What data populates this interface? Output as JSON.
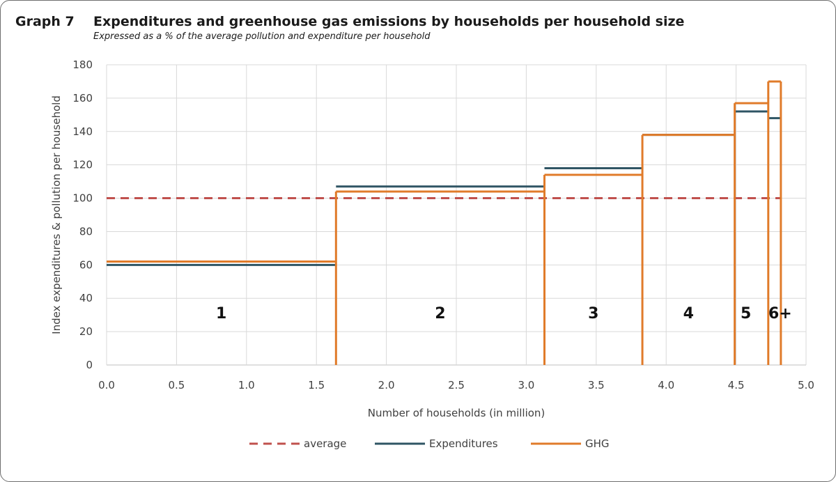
{
  "header": {
    "graph_label": "Graph 7",
    "title": "Expenditures and greenhouse gas emissions by households per household size",
    "subtitle": "Expressed as a % of the average pollution and expenditure per household"
  },
  "colors": {
    "average": "#c0504d",
    "expenditures": "#2f5564",
    "ghg": "#e07b2a",
    "grid": "#d9d9d9",
    "axis": "#bfbfbf"
  },
  "chart_data": {
    "type": "line",
    "xlabel": "Number of households (in million)",
    "ylabel": "Index expenditures & pollution per household",
    "xlim": [
      0,
      5
    ],
    "ylim": [
      0,
      180
    ],
    "x_ticks": [
      "0.0",
      "0.5",
      "1.0",
      "1.5",
      "2.0",
      "2.5",
      "3.0",
      "3.5",
      "4.0",
      "4.5",
      "5.0"
    ],
    "y_ticks": [
      "0",
      "20",
      "40",
      "60",
      "80",
      "100",
      "120",
      "140",
      "160",
      "180"
    ],
    "grid": true,
    "legend_position": "bottom",
    "segments": [
      {
        "label": "1",
        "x_start": 0.0,
        "x_end": 1.64,
        "expenditures": 60,
        "ghg": 62
      },
      {
        "label": "2",
        "x_start": 1.64,
        "x_end": 3.13,
        "expenditures": 107,
        "ghg": 104
      },
      {
        "label": "3",
        "x_start": 3.13,
        "x_end": 3.83,
        "expenditures": 118,
        "ghg": 114
      },
      {
        "label": "4",
        "x_start": 3.83,
        "x_end": 4.49,
        "expenditures": 138,
        "ghg": 138
      },
      {
        "label": "5",
        "x_start": 4.49,
        "x_end": 4.73,
        "expenditures": 152,
        "ghg": 157
      },
      {
        "label": "6+",
        "x_start": 4.73,
        "x_end": 4.82,
        "expenditures": 148,
        "ghg": 170
      }
    ],
    "series": [
      {
        "name": "average",
        "style": "dashed",
        "x": [
          0,
          4.82
        ],
        "values": [
          100,
          100
        ]
      },
      {
        "name": "Expenditures",
        "style": "step"
      },
      {
        "name": "GHG",
        "style": "step"
      }
    ],
    "legend": [
      "average",
      "Expenditures",
      "GHG"
    ]
  }
}
